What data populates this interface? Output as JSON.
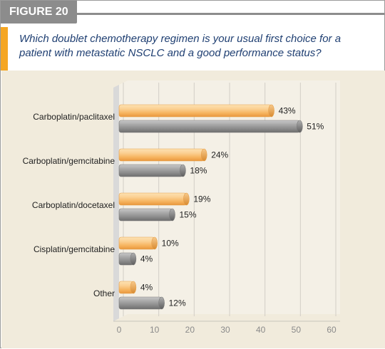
{
  "figure_label": "FIGURE 20",
  "question": "Which doublet chemotherapy regimen is your usual first choice for a patient with metastatic NSCLC and a good performance status?",
  "colors": {
    "accent": "#f5a623",
    "title_text": "#1f3f72",
    "panel_bg": "#f1ebdc",
    "orange_bar": "#f9c27a",
    "gray_bar": "#9a9a9a"
  },
  "chart_data": {
    "type": "bar",
    "orientation": "horizontal",
    "categories": [
      "Carboplatin/paclitaxel",
      "Carboplatin/gemcitabine",
      "Carboplatin/docetaxel",
      "Cisplatin/gemcitabine",
      "Other"
    ],
    "series": [
      {
        "values": [
          43,
          24,
          19,
          10,
          4
        ],
        "labels": [
          "43%",
          "24%",
          "19%",
          "10%",
          "4%"
        ],
        "color": "#f9c27a"
      },
      {
        "values": [
          51,
          18,
          15,
          4,
          12
        ],
        "labels": [
          "51%",
          "18%",
          "15%",
          "4%",
          "12%"
        ],
        "color": "#9a9a9a"
      }
    ],
    "xlim": [
      0,
      60
    ],
    "xticks": [
      "0",
      "10",
      "20",
      "30",
      "40",
      "50",
      "60"
    ],
    "grid": true
  }
}
